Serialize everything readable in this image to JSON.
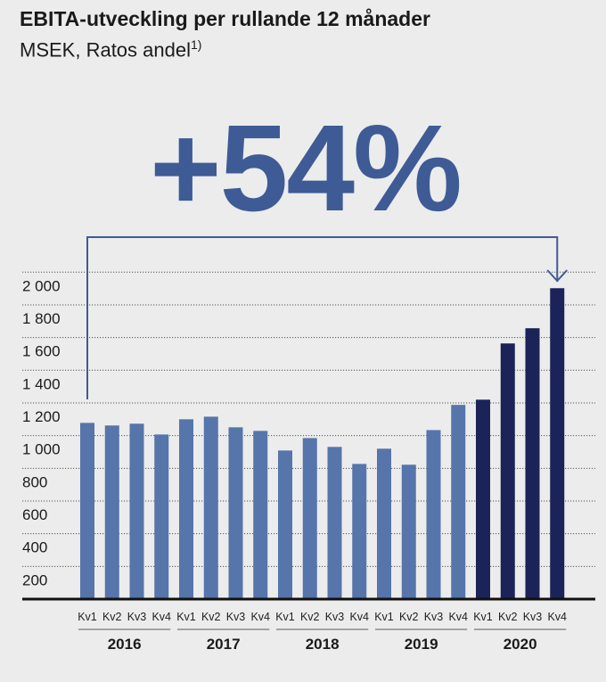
{
  "chart_data": {
    "type": "bar",
    "title": "EBITA-utveckling per rullande 12 månader",
    "subtitle": "MSEK, Ratos andel",
    "subtitle_footnote": "1)",
    "annotation": "+54%",
    "xlabel": "",
    "ylabel": "",
    "ylim": [
      0,
      2100
    ],
    "yticks": [
      200,
      400,
      600,
      800,
      1000,
      1200,
      1400,
      1600,
      1800,
      2000
    ],
    "ytick_labels": [
      "200",
      "400",
      "600",
      "800",
      "1 000",
      "1 200",
      "1 400",
      "1 600",
      "1 800",
      "2 000"
    ],
    "grid": true,
    "years": [
      "2016",
      "2017",
      "2018",
      "2019",
      "2020"
    ],
    "quarters": [
      "Kv1",
      "Kv2",
      "Kv3",
      "Kv4"
    ],
    "values": [
      1078,
      1062,
      1073,
      1007,
      1100,
      1116,
      1051,
      1029,
      909,
      985,
      931,
      827,
      920,
      822,
      1034,
      1188,
      1220,
      1564,
      1657,
      1902
    ],
    "colors": {
      "previous_years": "#5675ab",
      "highlight_year": "#1c2358",
      "annotation": "#3f5b96"
    }
  }
}
